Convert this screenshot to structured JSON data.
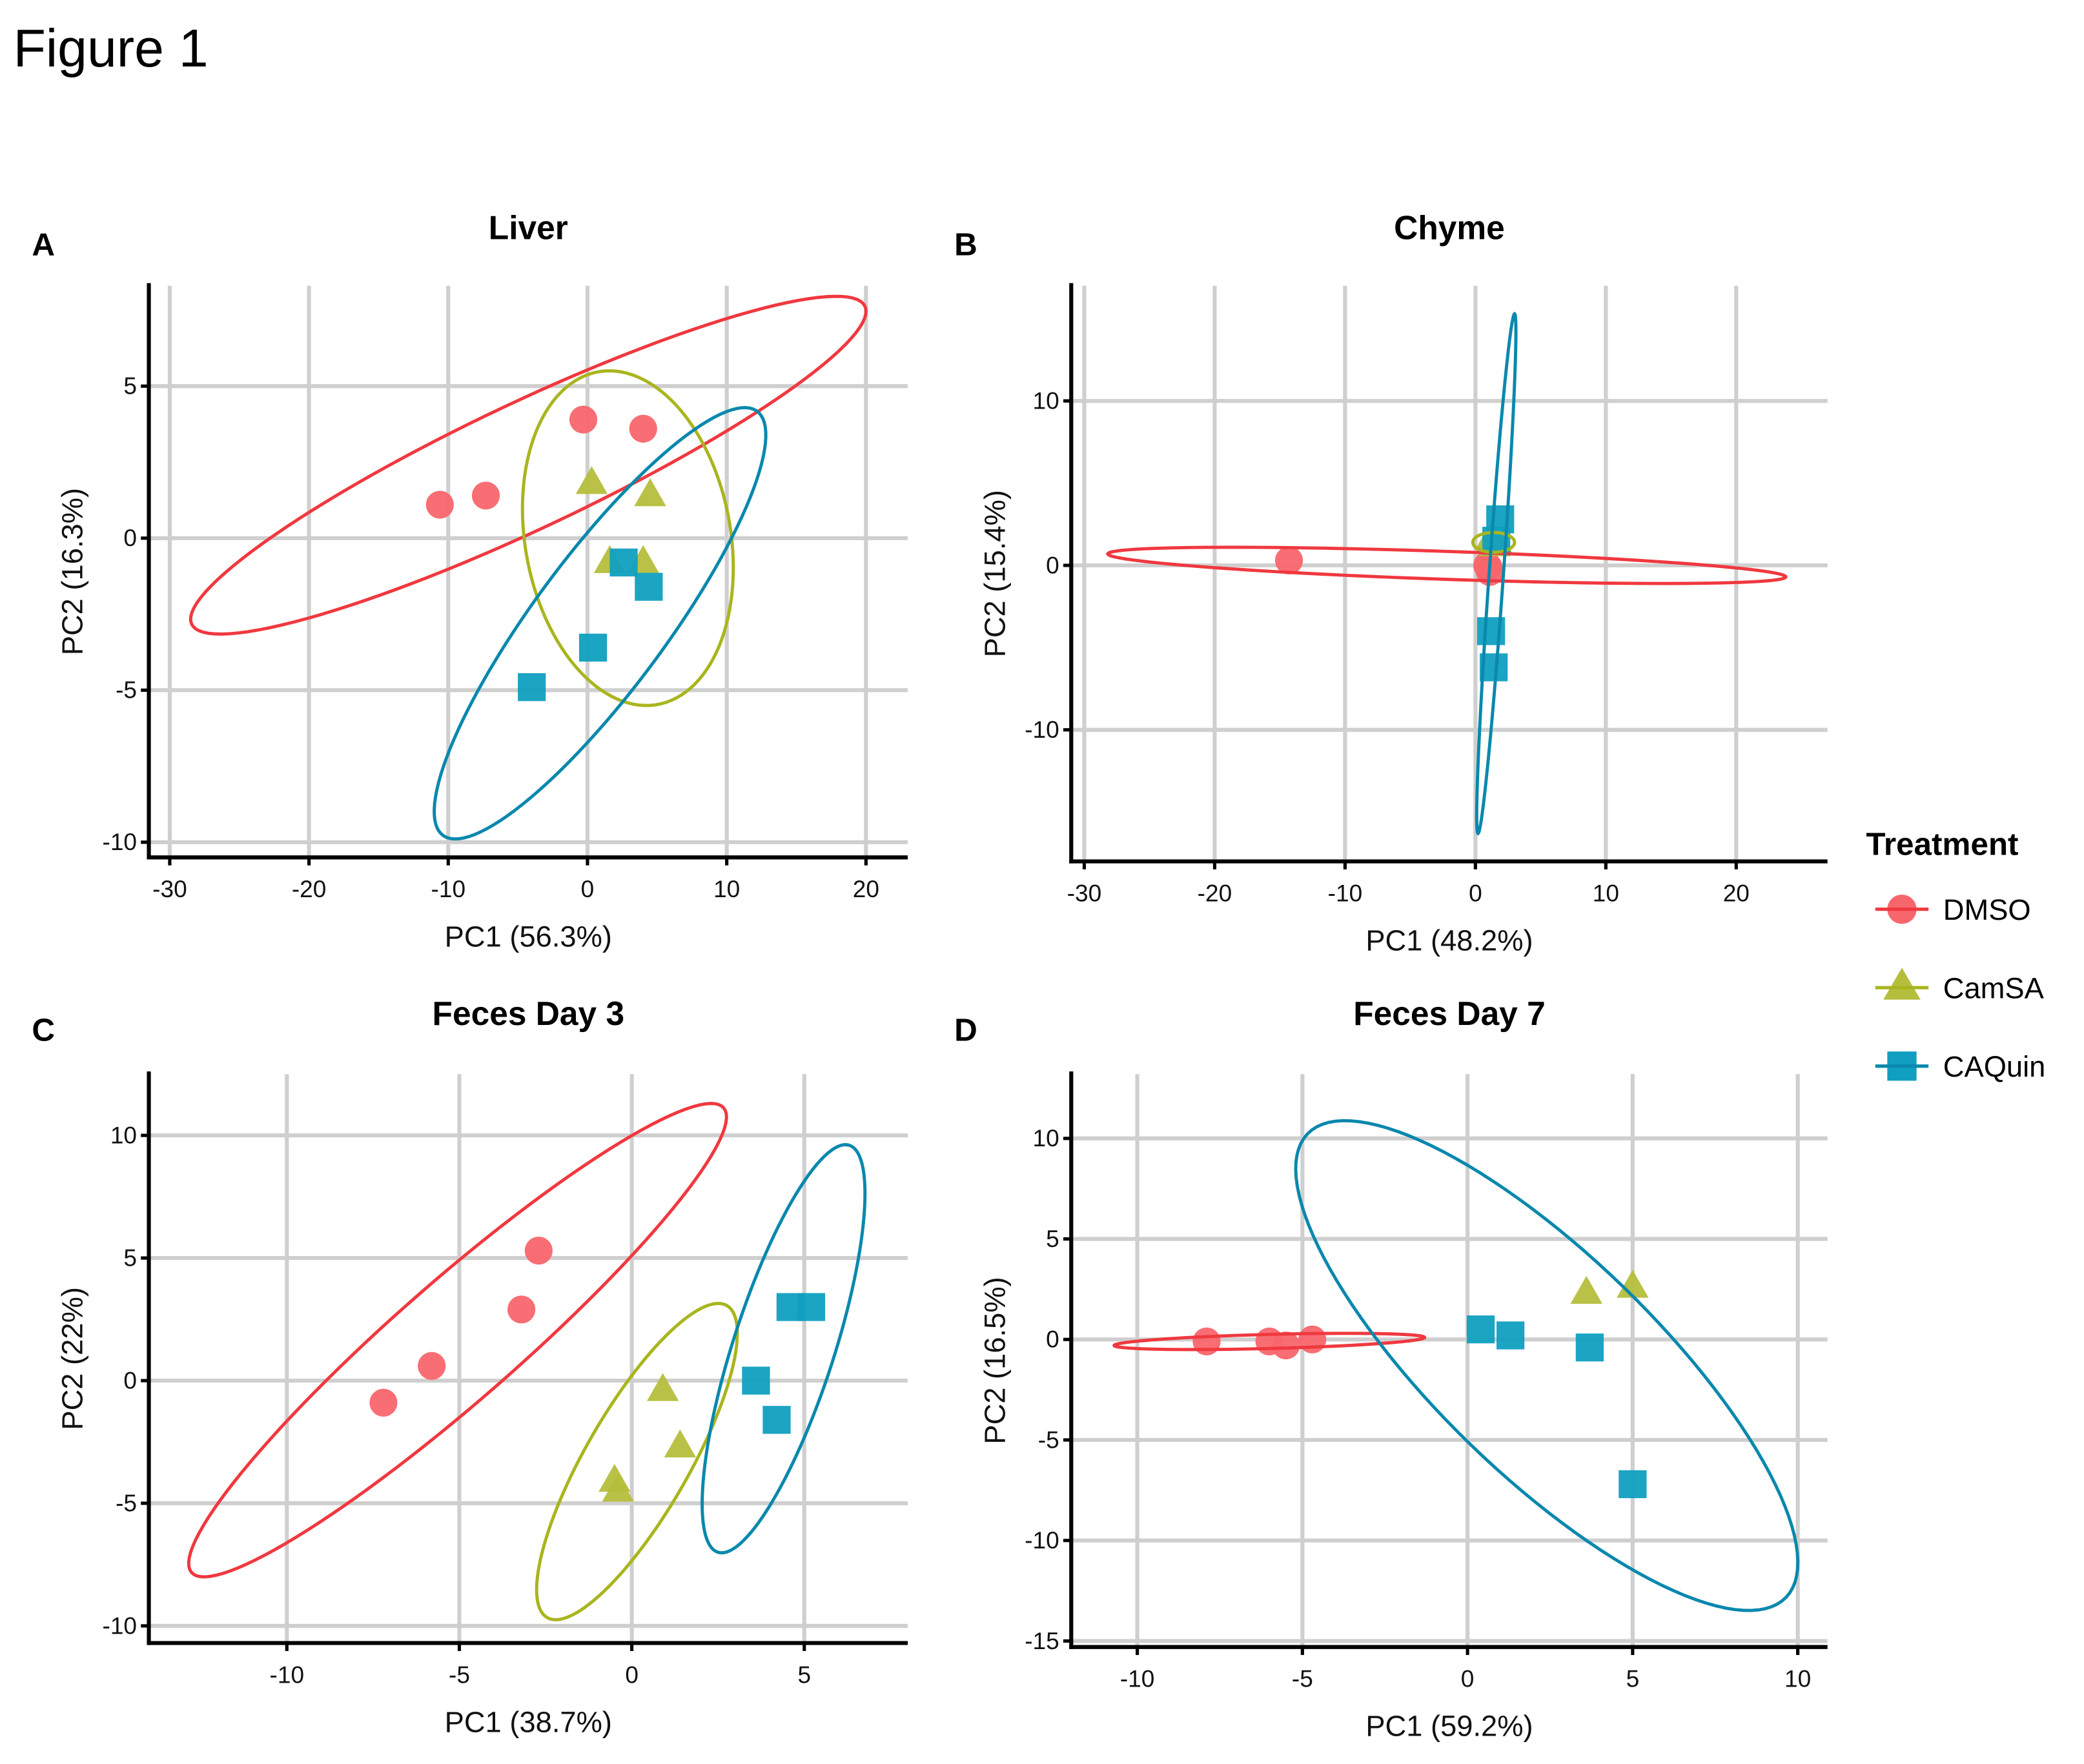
{
  "figure": {
    "title": "Figure 1"
  },
  "legend": {
    "title": "Treatment",
    "items": [
      {
        "label": "DMSO",
        "shape": "circle",
        "color": "#F8666D",
        "line_color": "#F0383F"
      },
      {
        "label": "CamSA",
        "shape": "triangle",
        "color": "#B5BE3C",
        "line_color": "#A9B51E"
      },
      {
        "label": "CAQuin",
        "shape": "square",
        "color": "#109FC0",
        "line_color": "#0A88AD"
      }
    ]
  },
  "chart_data": [
    {
      "type": "scatter",
      "panel": "A",
      "title": "Liver",
      "xlabel": "PC1 (56.3%)",
      "ylabel": "PC2 (16.3%)",
      "xlim": [
        -31.5,
        23
      ],
      "ylim": [
        -10.5,
        8.3
      ],
      "xticks": [
        -30,
        -20,
        -10,
        0,
        10,
        20
      ],
      "yticks": [
        -10,
        -5,
        0,
        5
      ],
      "grid": true,
      "series": [
        {
          "name": "DMSO",
          "points": [
            [
              -10.6,
              1.1
            ],
            [
              -7.3,
              1.4
            ],
            [
              -0.3,
              3.9
            ],
            [
              4.0,
              3.6
            ]
          ],
          "ellipse": {
            "center": [
              -4.25,
              2.4
            ],
            "a": [
              24.25,
              5.1
            ],
            "b": [
              -0.4,
              2.2
            ]
          }
        },
        {
          "name": "CamSA",
          "points": [
            [
              0.3,
              1.8
            ],
            [
              4.5,
              1.4
            ],
            [
              1.6,
              -0.8
            ],
            [
              4.0,
              -0.8
            ]
          ],
          "ellipse": {
            "center": [
              2.9,
              0.0
            ],
            "a": [
              -1.6,
              5.5
            ],
            "b": [
              7.4,
              0.2
            ]
          }
        },
        {
          "name": "CAQuin",
          "points": [
            [
              2.6,
              -0.8
            ],
            [
              4.4,
              -1.6
            ],
            [
              0.4,
              -3.6
            ],
            [
              -4.0,
              -4.9
            ]
          ],
          "ellipse": {
            "center": [
              0.9,
              -2.8
            ],
            "a": [
              11.8,
              6.6
            ],
            "b": [
              -1.6,
              2.6
            ]
          }
        }
      ]
    },
    {
      "type": "scatter",
      "panel": "B",
      "title": "Chyme",
      "xlabel": "PC1 (48.2%)",
      "ylabel": "PC2 (15.4%)",
      "xlim": [
        -31,
        27
      ],
      "ylim": [
        -18,
        17
      ],
      "xticks": [
        -30,
        -20,
        -10,
        0,
        10,
        20
      ],
      "yticks": [
        -10,
        0,
        10
      ],
      "grid": true,
      "series": [
        {
          "name": "DMSO",
          "points": [
            [
              -14.3,
              0.3
            ],
            [
              0.9,
              0.0
            ],
            [
              1.1,
              -0.4
            ],
            [
              1.0,
              -0.1
            ]
          ],
          "ellipse": {
            "center": [
              -2.2,
              0.0
            ],
            "a": [
              26.0,
              -0.7
            ],
            "b": [
              0.0,
              0.85
            ]
          }
        },
        {
          "name": "CamSA",
          "points": [
            [
              1.2,
              1.6
            ],
            [
              1.6,
              1.4
            ],
            [
              1.5,
              1.2
            ],
            [
              1.3,
              1.5
            ]
          ],
          "ellipse": {
            "center": [
              1.4,
              1.4
            ],
            "a": [
              1.6,
              0.0
            ],
            "b": [
              0.0,
              0.6
            ]
          }
        },
        {
          "name": "CAQuin",
          "points": [
            [
              1.9,
              2.8
            ],
            [
              1.6,
              1.5
            ],
            [
              1.2,
              -4.0
            ],
            [
              1.4,
              -6.2
            ]
          ],
          "ellipse": {
            "center": [
              1.6,
              -0.5
            ],
            "a": [
              1.4,
              15.8
            ],
            "b": [
              0.55,
              0.0
            ]
          }
        }
      ]
    },
    {
      "type": "scatter",
      "panel": "C",
      "title": "Feces Day 3",
      "xlabel": "PC1 (38.7%)",
      "ylabel": "PC2 (22%)",
      "xlim": [
        -14,
        8
      ],
      "ylim": [
        -10.7,
        12.5
      ],
      "xticks": [
        -10,
        -5,
        0,
        5
      ],
      "yticks": [
        -10,
        -5,
        0,
        5,
        10
      ],
      "grid": true,
      "series": [
        {
          "name": "DMSO",
          "points": [
            [
              -7.2,
              -0.9
            ],
            [
              -5.8,
              0.6
            ],
            [
              -3.2,
              2.9
            ],
            [
              -2.7,
              5.3
            ]
          ],
          "ellipse": {
            "center": [
              -5.05,
              1.65
            ],
            "a": [
              7.65,
              9.55
            ],
            "b": [
              1.5,
              -1.4
            ]
          }
        },
        {
          "name": "CamSA",
          "points": [
            [
              0.9,
              -0.4
            ],
            [
              1.4,
              -2.7
            ],
            [
              -0.5,
              -4.1
            ],
            [
              -0.4,
              -4.5
            ]
          ],
          "ellipse": {
            "center": [
              0.15,
              -3.3
            ],
            "a": [
              2.55,
              6.4
            ],
            "b": [
              1.4,
              -0.8
            ]
          }
        },
        {
          "name": "CAQuin",
          "points": [
            [
              3.6,
              0.0
            ],
            [
              4.2,
              -1.6
            ],
            [
              4.6,
              3.0
            ],
            [
              5.2,
              3.0
            ]
          ],
          "ellipse": {
            "center": [
              4.4,
              1.3
            ],
            "a": [
              1.9,
              8.3
            ],
            "b": [
              1.4,
              -0.6
            ]
          }
        }
      ]
    },
    {
      "type": "scatter",
      "panel": "D",
      "title": "Feces Day 7",
      "xlabel": "PC1 (59.2%)",
      "ylabel": "PC2 (16.5%)",
      "xlim": [
        -12,
        10.9
      ],
      "ylim": [
        -15.3,
        13.2
      ],
      "xticks": [
        -10,
        -5,
        0,
        5,
        10
      ],
      "yticks": [
        -15,
        -10,
        -5,
        0,
        5,
        10
      ],
      "grid": true,
      "series": [
        {
          "name": "DMSO",
          "points": [
            [
              -7.9,
              -0.1
            ],
            [
              -6.0,
              -0.1
            ],
            [
              -5.5,
              -0.3
            ],
            [
              -4.7,
              0.0
            ]
          ],
          "ellipse": {
            "center": [
              -6.0,
              -0.1
            ],
            "a": [
              4.7,
              0.2
            ],
            "b": [
              0.0,
              0.35
            ]
          }
        },
        {
          "name": "CamSA",
          "points": [
            [
              3.6,
              2.3
            ],
            [
              5.0,
              2.6
            ]
          ]
        },
        {
          "name": "CAQuin",
          "points": [
            [
              0.4,
              0.5
            ],
            [
              1.3,
              0.2
            ],
            [
              3.7,
              -0.4
            ],
            [
              5.0,
              -7.2
            ]
          ],
          "ellipse": {
            "center": [
              2.4,
              -1.3
            ],
            "a": [
              6.8,
              -12.0
            ],
            "b": [
              3.4,
              2.1
            ]
          }
        }
      ]
    }
  ]
}
